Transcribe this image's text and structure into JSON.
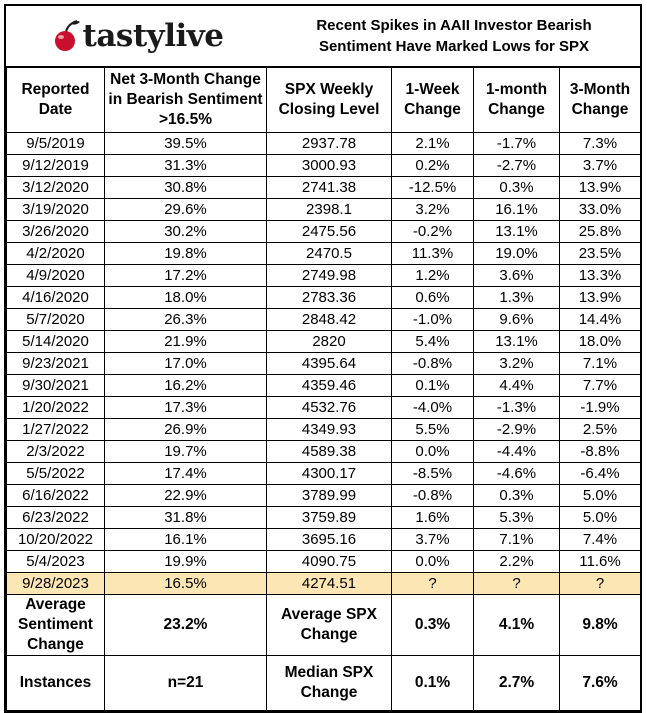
{
  "brand": {
    "tasty": "tasty",
    "live": "live"
  },
  "title": {
    "line1": "Recent Spikes in AAII Investor Bearish",
    "line2": "Sentiment Have Marked Lows for SPX"
  },
  "columns": [
    "Reported Date",
    "Net 3-Month Change in Bearish Sentiment >16.5%",
    "SPX Weekly Closing Level",
    "1-Week Change",
    "1-month Change",
    "3-Month Change"
  ],
  "rows": [
    [
      "9/5/2019",
      "39.5%",
      "2937.78",
      "2.1%",
      "-1.7%",
      "7.3%"
    ],
    [
      "9/12/2019",
      "31.3%",
      "3000.93",
      "0.2%",
      "-2.7%",
      "3.7%"
    ],
    [
      "3/12/2020",
      "30.8%",
      "2741.38",
      "-12.5%",
      "0.3%",
      "13.9%"
    ],
    [
      "3/19/2020",
      "29.6%",
      "2398.1",
      "3.2%",
      "16.1%",
      "33.0%"
    ],
    [
      "3/26/2020",
      "30.2%",
      "2475.56",
      "-0.2%",
      "13.1%",
      "25.8%"
    ],
    [
      "4/2/2020",
      "19.8%",
      "2470.5",
      "11.3%",
      "19.0%",
      "23.5%"
    ],
    [
      "4/9/2020",
      "17.2%",
      "2749.98",
      "1.2%",
      "3.6%",
      "13.3%"
    ],
    [
      "4/16/2020",
      "18.0%",
      "2783.36",
      "0.6%",
      "1.3%",
      "13.9%"
    ],
    [
      "5/7/2020",
      "26.3%",
      "2848.42",
      "-1.0%",
      "9.6%",
      "14.4%"
    ],
    [
      "5/14/2020",
      "21.9%",
      "2820",
      "5.4%",
      "13.1%",
      "18.0%"
    ],
    [
      "9/23/2021",
      "17.0%",
      "4395.64",
      "-0.8%",
      "3.2%",
      "7.1%"
    ],
    [
      "9/30/2021",
      "16.2%",
      "4359.46",
      "0.1%",
      "4.4%",
      "7.7%"
    ],
    [
      "1/20/2022",
      "17.3%",
      "4532.76",
      "-4.0%",
      "-1.3%",
      "-1.9%"
    ],
    [
      "1/27/2022",
      "26.9%",
      "4349.93",
      "5.5%",
      "-2.9%",
      "2.5%"
    ],
    [
      "2/3/2022",
      "19.7%",
      "4589.38",
      "0.0%",
      "-4.4%",
      "-8.8%"
    ],
    [
      "5/5/2022",
      "17.4%",
      "4300.17",
      "-8.5%",
      "-4.6%",
      "-6.4%"
    ],
    [
      "6/16/2022",
      "22.9%",
      "3789.99",
      "-0.8%",
      "0.3%",
      "5.0%"
    ],
    [
      "6/23/2022",
      "31.8%",
      "3759.89",
      "1.6%",
      "5.3%",
      "5.0%"
    ],
    [
      "10/20/2022",
      "16.1%",
      "3695.16",
      "3.7%",
      "7.1%",
      "7.4%"
    ],
    [
      "5/4/2023",
      "19.9%",
      "4090.75",
      "0.0%",
      "2.2%",
      "11.6%"
    ]
  ],
  "highlight_row": [
    "9/28/2023",
    "16.5%",
    "4274.51",
    "?",
    "?",
    "?"
  ],
  "summary": [
    {
      "label": "Average Sentiment Change",
      "value": "23.2%",
      "spx_label": "Average SPX Change",
      "week": "0.3%",
      "month": "4.1%",
      "three_month": "9.8%"
    },
    {
      "label": "Instances",
      "value": "n=21",
      "spx_label": "Median SPX Change",
      "week": "0.1%",
      "month": "2.7%",
      "three_month": "7.6%"
    }
  ],
  "colors": {
    "highlight": "#fce6b4",
    "cherry": "#c8102e"
  },
  "icons": {
    "logo": "cherry-icon"
  }
}
